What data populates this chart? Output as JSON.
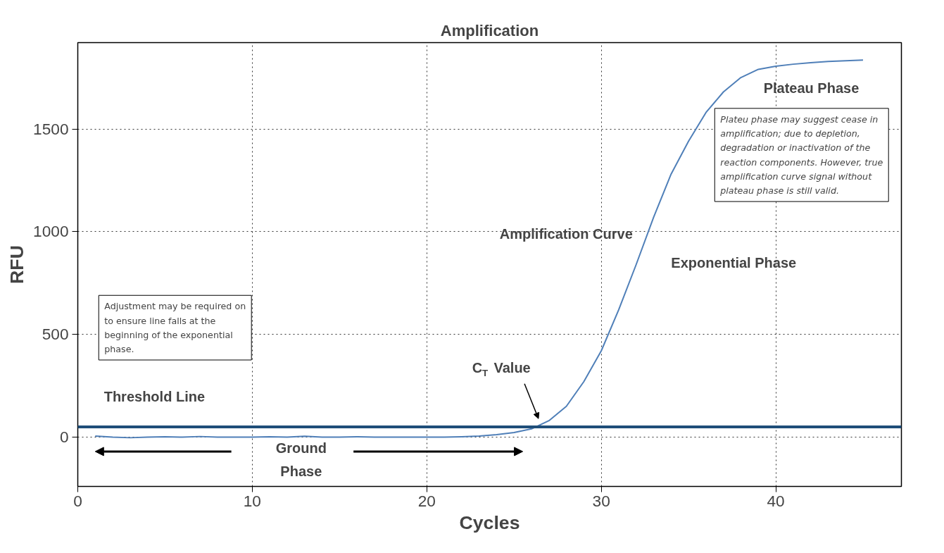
{
  "chart_data": {
    "type": "line",
    "title": "Amplification",
    "xlabel": "Cycles",
    "ylabel": "RFU",
    "x": [
      1,
      2,
      3,
      4,
      5,
      6,
      7,
      8,
      9,
      10,
      11,
      12,
      13,
      14,
      15,
      16,
      17,
      18,
      19,
      20,
      21,
      22,
      23,
      24,
      25,
      26,
      27,
      28,
      29,
      30,
      31,
      32,
      33,
      34,
      35,
      36,
      37,
      38,
      39,
      40,
      41,
      42,
      43,
      44,
      45
    ],
    "series": [
      {
        "color": "#4f7fb8",
        "values": [
          5,
          0,
          -3,
          0,
          2,
          0,
          3,
          0,
          0,
          0,
          2,
          0,
          4,
          0,
          0,
          2,
          0,
          0,
          0,
          0,
          0,
          2,
          5,
          12,
          22,
          40,
          80,
          150,
          270,
          420,
          620,
          840,
          1070,
          1280,
          1440,
          1580,
          1680,
          1750,
          1790,
          1805,
          1815,
          1822,
          1828,
          1832,
          1835
        ]
      }
    ],
    "ref_lines": [
      {
        "axis": "y",
        "value": 50,
        "label": "Threshold Line",
        "color": "#1f4e79"
      }
    ],
    "annotations": [
      "Plateau Phase",
      "Exponential Phase",
      "Amplification Curve",
      "C$_{T}$ Value",
      "Ground Phase",
      "Plateu phase may suggest cease in amplification; due to depletion, degradation or inactivation of the reaction components. However, true amplification curve signal without plateau phase is still valid.",
      "Adjustment may be required on to ensure line falls at the beginning of the exponential phase."
    ],
    "xlim": [
      0,
      47.2
    ],
    "ylim": [
      -240,
      1920
    ],
    "xticks": [
      0,
      10,
      20,
      30,
      40
    ],
    "yticks": [
      0,
      500,
      1000,
      1500
    ],
    "grid": true,
    "line_style": "solid",
    "marker": "none"
  }
}
